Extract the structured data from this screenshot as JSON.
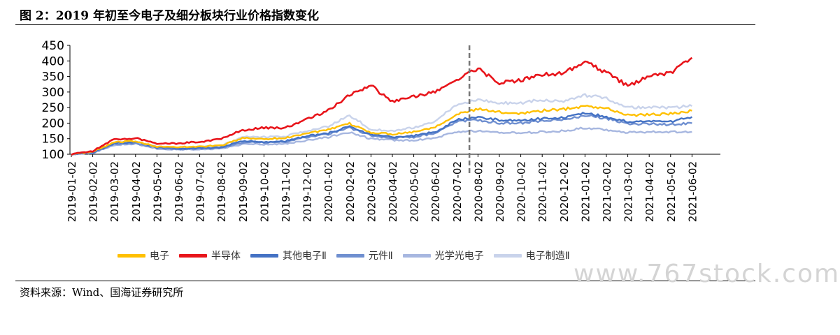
{
  "header": {
    "title": "图 2：2019 年初至今电子及细分板块行业价格指数变化"
  },
  "footer": {
    "source": "资料来源：Wind、国海证券研究所"
  },
  "watermark": "www.767stock.com",
  "chart_data": {
    "type": "line",
    "title": "",
    "xlabel": "",
    "ylabel": "",
    "ylim": [
      100,
      450
    ],
    "y_ticks": [
      100,
      150,
      200,
      250,
      300,
      350,
      400,
      450
    ],
    "categories": [
      "2019-01-02",
      "2019-02-02",
      "2019-03-02",
      "2019-04-02",
      "2019-05-02",
      "2019-06-02",
      "2019-07-02",
      "2019-08-02",
      "2019-09-02",
      "2019-10-02",
      "2019-11-02",
      "2019-12-02",
      "2020-01-02",
      "2020-02-02",
      "2020-03-02",
      "2020-04-02",
      "2020-05-02",
      "2020-06-02",
      "2020-07-02",
      "2020-08-02",
      "2020-09-02",
      "2020-10-02",
      "2020-11-02",
      "2020-12-02",
      "2021-01-02",
      "2021-02-02",
      "2021-03-02",
      "2021-04-02",
      "2021-05-02",
      "2021-06-02"
    ],
    "grid": false,
    "legend_position": "bottom",
    "annotations": [
      {
        "type": "vertical-dashed-line",
        "x": "2020-07-20"
      }
    ],
    "series": [
      {
        "name": "电子",
        "color": "#FFC000",
        "values": [
          100,
          108,
          138,
          142,
          125,
          122,
          125,
          128,
          152,
          150,
          152,
          168,
          178,
          198,
          170,
          165,
          172,
          188,
          228,
          245,
          235,
          232,
          240,
          245,
          255,
          248,
          225,
          228,
          230,
          240
        ]
      },
      {
        "name": "半导体",
        "color": "#E8151B",
        "values": [
          100,
          110,
          148,
          152,
          135,
          135,
          140,
          150,
          178,
          185,
          185,
          212,
          240,
          290,
          320,
          270,
          285,
          300,
          340,
          375,
          330,
          338,
          355,
          360,
          400,
          362,
          320,
          350,
          360,
          410
        ]
      },
      {
        "name": "其他电子Ⅱ",
        "color": "#4472C4",
        "values": [
          100,
          105,
          135,
          140,
          122,
          118,
          120,
          122,
          142,
          140,
          142,
          158,
          168,
          190,
          162,
          155,
          160,
          172,
          210,
          218,
          210,
          208,
          215,
          218,
          232,
          220,
          205,
          205,
          205,
          220
        ]
      },
      {
        "name": "元件Ⅱ",
        "color": "#6F8FD0",
        "values": [
          100,
          104,
          132,
          136,
          120,
          116,
          118,
          120,
          138,
          138,
          140,
          155,
          165,
          185,
          160,
          152,
          155,
          168,
          205,
          210,
          200,
          200,
          208,
          210,
          225,
          215,
          198,
          198,
          195,
          200
        ]
      },
      {
        "name": "光学光电子",
        "color": "#A7B7E0",
        "values": [
          100,
          103,
          130,
          134,
          118,
          115,
          116,
          118,
          132,
          132,
          134,
          145,
          155,
          170,
          150,
          145,
          145,
          152,
          172,
          175,
          170,
          168,
          172,
          175,
          185,
          178,
          170,
          172,
          172,
          172
        ]
      },
      {
        "name": "电子制造Ⅱ",
        "color": "#C9D3EB",
        "values": [
          100,
          106,
          136,
          140,
          124,
          120,
          124,
          128,
          155,
          155,
          158,
          175,
          190,
          225,
          180,
          175,
          185,
          205,
          260,
          275,
          265,
          265,
          275,
          270,
          290,
          280,
          250,
          250,
          250,
          255
        ]
      }
    ]
  }
}
